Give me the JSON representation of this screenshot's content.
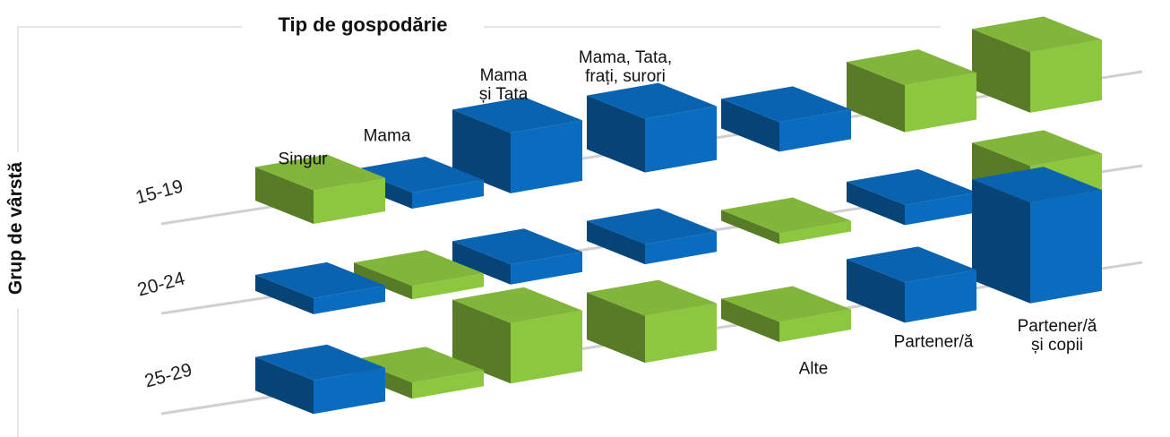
{
  "chart_data": {
    "type": "box3d",
    "title": "Tip de gospodărie",
    "y_label": "Grup de vârstă",
    "categories": [
      "Singur",
      "Mama",
      "Mama\nși Tata",
      "Mama, Tata,\nfrați, surori",
      "Alte",
      "Partener/ă",
      "Partener/ă\nși copii"
    ],
    "series": [
      {
        "name": "15-19",
        "values": [
          25,
          12,
          45,
          40,
          22,
          35,
          45
        ],
        "colors": [
          "#8dc63f",
          "#0a6cbf",
          "#0a6cbf",
          "#0a6cbf",
          "#0a6cbf",
          "#8dc63f",
          "#8dc63f"
        ]
      },
      {
        "name": "20-24",
        "values": [
          12,
          10,
          15,
          15,
          8,
          15,
          30
        ],
        "colors": [
          "#0a6cbf",
          "#8dc63f",
          "#0a6cbf",
          "#0a6cbf",
          "#8dc63f",
          "#0a6cbf",
          "#8dc63f"
        ]
      },
      {
        "name": "25-29",
        "values": [
          25,
          12,
          45,
          35,
          15,
          30,
          75
        ],
        "colors": [
          "#0a6cbf",
          "#8dc63f",
          "#8dc63f",
          "#8dc63f",
          "#8dc63f",
          "#0a6cbf",
          "#0a6cbf"
        ]
      }
    ]
  }
}
